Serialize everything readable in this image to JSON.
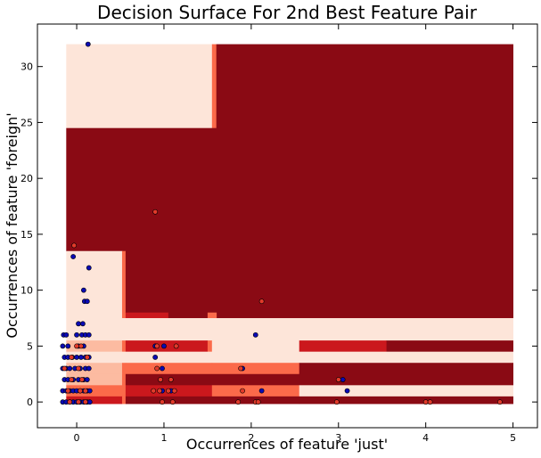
{
  "chart_data": {
    "type": "scatter",
    "title": "Decision Surface For 2nd Best Feature Pair",
    "xlabel": "Occurrences of feature 'just'",
    "ylabel": "Occurrences of feature 'foreign'",
    "xlim": [
      -0.45,
      5.28
    ],
    "ylim": [
      -2.3,
      33.8
    ],
    "x_ticks": [
      0,
      1,
      2,
      3,
      4,
      5
    ],
    "y_ticks": [
      0,
      5,
      10,
      15,
      20,
      25,
      30
    ],
    "grid": false,
    "legend": "none",
    "surface_colors": {
      "level0": "#fde5d9",
      "level1": "#fcbba1",
      "level2": "#fb6a4a",
      "level3": "#cb181d",
      "level4": "#8a0a14"
    },
    "point_colors": {
      "class0": "#0a0ab4",
      "class1": "#e23a2a"
    },
    "surface": [
      {
        "x0": -0.12,
        "x1": 1.55,
        "y0": 24.5,
        "y1": 32.0,
        "level": 0
      },
      {
        "x0": 1.55,
        "x1": 1.6,
        "y0": 24.5,
        "y1": 32.0,
        "level": 2
      },
      {
        "x0": 1.6,
        "x1": 5.0,
        "y0": 7.5,
        "y1": 32.0,
        "level": 4
      },
      {
        "x0": -0.12,
        "x1": 1.6,
        "y0": 13.5,
        "y1": 24.5,
        "level": 4
      },
      {
        "x0": -0.12,
        "x1": 0.52,
        "y0": 7.5,
        "y1": 13.5,
        "level": 0
      },
      {
        "x0": 0.52,
        "x1": 0.56,
        "y0": 7.5,
        "y1": 13.5,
        "level": 2
      },
      {
        "x0": 0.56,
        "x1": 1.6,
        "y0": 8.0,
        "y1": 13.5,
        "level": 4
      },
      {
        "x0": 0.56,
        "x1": 1.05,
        "y0": 7.5,
        "y1": 8.0,
        "level": 3
      },
      {
        "x0": 1.05,
        "x1": 1.5,
        "y0": 7.5,
        "y1": 8.0,
        "level": 4
      },
      {
        "x0": 1.5,
        "x1": 1.6,
        "y0": 7.5,
        "y1": 8.0,
        "level": 2
      },
      {
        "x0": -0.12,
        "x1": 5.0,
        "y0": 5.5,
        "y1": 7.5,
        "level": 0
      },
      {
        "x0": -0.12,
        "x1": 0.52,
        "y0": 4.5,
        "y1": 5.5,
        "level": 1
      },
      {
        "x0": 0.52,
        "x1": 0.56,
        "y0": 4.5,
        "y1": 5.5,
        "level": 2
      },
      {
        "x0": 0.56,
        "x1": 1.5,
        "y0": 4.5,
        "y1": 5.5,
        "level": 3
      },
      {
        "x0": 1.5,
        "x1": 1.55,
        "y0": 4.5,
        "y1": 5.5,
        "level": 2
      },
      {
        "x0": 1.55,
        "x1": 2.55,
        "y0": 4.5,
        "y1": 5.5,
        "level": 0
      },
      {
        "x0": 2.55,
        "x1": 3.55,
        "y0": 4.5,
        "y1": 5.5,
        "level": 3
      },
      {
        "x0": 3.55,
        "x1": 5.0,
        "y0": 4.5,
        "y1": 5.5,
        "level": 4
      },
      {
        "x0": -0.12,
        "x1": 0.52,
        "y0": 3.5,
        "y1": 4.5,
        "level": 0
      },
      {
        "x0": 0.52,
        "x1": 5.0,
        "y0": 3.5,
        "y1": 4.5,
        "level": 0
      },
      {
        "x0": -0.12,
        "x1": 0.52,
        "y0": 2.5,
        "y1": 3.5,
        "level": 1
      },
      {
        "x0": 0.52,
        "x1": 0.56,
        "y0": 2.5,
        "y1": 3.5,
        "level": 2
      },
      {
        "x0": 0.56,
        "x1": 1.55,
        "y0": 2.5,
        "y1": 3.5,
        "level": 2
      },
      {
        "x0": 1.55,
        "x1": 2.55,
        "y0": 2.5,
        "y1": 3.5,
        "level": 2
      },
      {
        "x0": 2.55,
        "x1": 5.0,
        "y0": 2.5,
        "y1": 3.5,
        "level": 4
      },
      {
        "x0": -0.12,
        "x1": 0.52,
        "y0": 1.5,
        "y1": 2.5,
        "level": 1
      },
      {
        "x0": 0.52,
        "x1": 0.56,
        "y0": 1.5,
        "y1": 2.5,
        "level": 2
      },
      {
        "x0": 0.56,
        "x1": 2.55,
        "y0": 1.5,
        "y1": 2.5,
        "level": 4
      },
      {
        "x0": 2.55,
        "x1": 5.0,
        "y0": 1.5,
        "y1": 2.5,
        "level": 4
      },
      {
        "x0": -0.12,
        "x1": 0.52,
        "y0": 0.5,
        "y1": 1.5,
        "level": 2
      },
      {
        "x0": 0.52,
        "x1": 0.56,
        "y0": 0.5,
        "y1": 1.5,
        "level": 2
      },
      {
        "x0": 0.56,
        "x1": 1.55,
        "y0": 0.5,
        "y1": 1.5,
        "level": 3
      },
      {
        "x0": 1.55,
        "x1": 2.55,
        "y0": 0.5,
        "y1": 1.5,
        "level": 2
      },
      {
        "x0": 2.55,
        "x1": 5.0,
        "y0": 0.5,
        "y1": 1.5,
        "level": 0
      },
      {
        "x0": -0.12,
        "x1": 0.52,
        "y0": -0.15,
        "y1": 0.5,
        "level": 3
      },
      {
        "x0": 0.52,
        "x1": 0.56,
        "y0": -0.15,
        "y1": 0.5,
        "level": 2
      },
      {
        "x0": 0.56,
        "x1": 2.55,
        "y0": -0.15,
        "y1": 0.5,
        "level": 4
      },
      {
        "x0": 2.55,
        "x1": 5.0,
        "y0": -0.15,
        "y1": 0.5,
        "level": 4
      }
    ],
    "series": [
      {
        "class": 0,
        "points": [
          [
            0.13,
            32
          ],
          [
            -0.04,
            13
          ],
          [
            0.14,
            12
          ],
          [
            0.08,
            10
          ],
          [
            0.09,
            9
          ],
          [
            0.12,
            9
          ],
          [
            0.02,
            7
          ],
          [
            0.07,
            7
          ],
          [
            -0.15,
            6
          ],
          [
            -0.12,
            6
          ],
          [
            0.0,
            6
          ],
          [
            0.06,
            6
          ],
          [
            0.1,
            6
          ],
          [
            0.14,
            6
          ],
          [
            2.05,
            6
          ],
          [
            -0.16,
            5
          ],
          [
            -0.1,
            5
          ],
          [
            0.02,
            5
          ],
          [
            0.08,
            5
          ],
          [
            0.9,
            5
          ],
          [
            1.0,
            5
          ],
          [
            -0.14,
            4
          ],
          [
            -0.1,
            4
          ],
          [
            -0.05,
            4
          ],
          [
            0.0,
            4
          ],
          [
            0.05,
            4
          ],
          [
            0.1,
            4
          ],
          [
            0.14,
            4
          ],
          [
            0.9,
            4
          ],
          [
            -0.16,
            3
          ],
          [
            -0.12,
            3
          ],
          [
            -0.08,
            3
          ],
          [
            -0.02,
            3
          ],
          [
            0.04,
            3
          ],
          [
            0.1,
            3
          ],
          [
            0.14,
            3
          ],
          [
            0.98,
            3
          ],
          [
            1.9,
            3
          ],
          [
            -0.14,
            2
          ],
          [
            -0.1,
            2
          ],
          [
            -0.04,
            2
          ],
          [
            0.02,
            2
          ],
          [
            0.08,
            2
          ],
          [
            0.12,
            2
          ],
          [
            3.05,
            2
          ],
          [
            -0.16,
            1
          ],
          [
            -0.12,
            1
          ],
          [
            -0.08,
            1
          ],
          [
            -0.04,
            1
          ],
          [
            0.0,
            1
          ],
          [
            0.04,
            1
          ],
          [
            0.08,
            1
          ],
          [
            0.12,
            1
          ],
          [
            0.15,
            1
          ],
          [
            0.98,
            1
          ],
          [
            1.08,
            1
          ],
          [
            2.12,
            1
          ],
          [
            3.1,
            1
          ],
          [
            -0.16,
            0
          ],
          [
            -0.12,
            0
          ],
          [
            -0.08,
            0
          ],
          [
            -0.04,
            0
          ],
          [
            0.0,
            0
          ],
          [
            0.04,
            0
          ],
          [
            0.08,
            0
          ],
          [
            0.12,
            0
          ],
          [
            0.15,
            0
          ]
        ]
      },
      {
        "class": 1,
        "points": [
          [
            0.9,
            17
          ],
          [
            -0.03,
            14
          ],
          [
            2.12,
            9
          ],
          [
            0.0,
            5
          ],
          [
            0.05,
            5
          ],
          [
            0.92,
            5
          ],
          [
            1.14,
            5
          ],
          [
            -0.06,
            4
          ],
          [
            0.12,
            4
          ],
          [
            -0.14,
            3
          ],
          [
            0.02,
            3
          ],
          [
            0.92,
            3
          ],
          [
            1.88,
            3
          ],
          [
            -0.06,
            2
          ],
          [
            0.06,
            2
          ],
          [
            0.96,
            2
          ],
          [
            1.08,
            2
          ],
          [
            3.0,
            2
          ],
          [
            -0.1,
            1
          ],
          [
            0.04,
            1
          ],
          [
            0.1,
            1
          ],
          [
            0.88,
            1
          ],
          [
            0.95,
            1
          ],
          [
            1.05,
            1
          ],
          [
            1.12,
            1
          ],
          [
            1.9,
            1
          ],
          [
            -0.08,
            0
          ],
          [
            0.02,
            0
          ],
          [
            0.1,
            0
          ],
          [
            0.98,
            0
          ],
          [
            1.1,
            0
          ],
          [
            1.85,
            0
          ],
          [
            2.05,
            0
          ],
          [
            2.08,
            0
          ],
          [
            2.98,
            0
          ],
          [
            4.0,
            0
          ],
          [
            4.05,
            0
          ],
          [
            4.85,
            0
          ]
        ]
      }
    ]
  }
}
